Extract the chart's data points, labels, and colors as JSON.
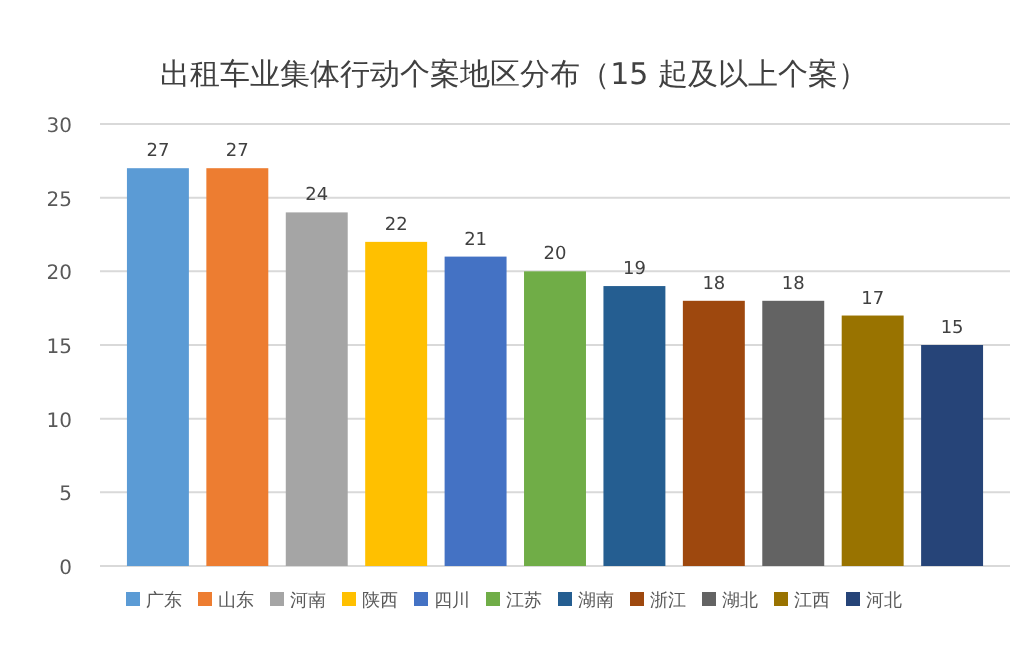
{
  "chart_data": {
    "type": "bar",
    "title": "出租车业集体行动个案地区分布（15 起及以上个案）",
    "categories": [
      null
    ],
    "series": [
      {
        "name": "广东",
        "color": "#5b9bd5",
        "values": [
          27
        ]
      },
      {
        "name": "山东",
        "color": "#ed7d31",
        "values": [
          27
        ]
      },
      {
        "name": "河南",
        "color": "#a5a5a5",
        "values": [
          24
        ]
      },
      {
        "name": "陕西",
        "color": "#ffc000",
        "values": [
          22
        ]
      },
      {
        "name": "四川",
        "color": "#4472c4",
        "values": [
          21
        ]
      },
      {
        "name": "江苏",
        "color": "#70ad47",
        "values": [
          20
        ]
      },
      {
        "name": "湖南",
        "color": "#255e91",
        "values": [
          19
        ]
      },
      {
        "name": "浙江",
        "color": "#9e480e",
        "values": [
          18
        ]
      },
      {
        "name": "湖北",
        "color": "#636363",
        "values": [
          18
        ]
      },
      {
        "name": "江西",
        "color": "#997300",
        "values": [
          17
        ]
      },
      {
        "name": "河北",
        "color": "#264478",
        "values": [
          15
        ]
      }
    ],
    "ylim": [
      0,
      30
    ],
    "yticks": [
      0,
      5,
      10,
      15,
      20,
      25,
      30
    ],
    "grid": "y",
    "legend": "bottom",
    "tick_labels": "y",
    "data_labels": true
  }
}
